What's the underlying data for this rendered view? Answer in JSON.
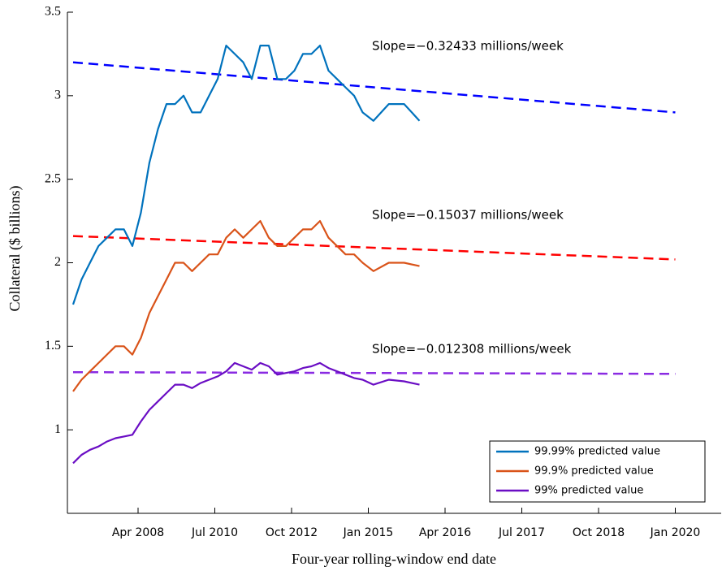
{
  "chart_data": {
    "type": "line",
    "ylabel": "Collateral ($ billions)",
    "xlabel": "Four-year rolling-window end date",
    "ylim": [
      0.5,
      3.5
    ],
    "yticks": [
      1,
      1.5,
      2,
      2.5,
      3,
      3.5
    ],
    "xlim": [
      "2006-03",
      "2020-10"
    ],
    "xticks": [
      {
        "value": "2008-04",
        "label": "Apr 2008"
      },
      {
        "value": "2010-07",
        "label": "Jul 2010"
      },
      {
        "value": "2012-10",
        "label": "Oct 2012"
      },
      {
        "value": "2015-01",
        "label": "Jan 2015"
      },
      {
        "value": "2016-04",
        "label": "Apr 2016"
      },
      {
        "value": "2017-07",
        "label": "Jul 2017"
      },
      {
        "value": "2018-10",
        "label": "Oct 2018"
      },
      {
        "value": "2020-01",
        "label": "Jan 2020"
      }
    ],
    "legend": "lower right",
    "x": [
      "2006-05",
      "2006-08",
      "2006-11",
      "2007-02",
      "2007-05",
      "2007-08",
      "2007-11",
      "2008-02",
      "2008-05",
      "2008-08",
      "2008-11",
      "2009-02",
      "2009-05",
      "2009-08",
      "2009-11",
      "2010-02",
      "2010-05",
      "2010-08",
      "2010-11",
      "2011-02",
      "2011-05",
      "2011-08",
      "2011-11",
      "2012-02",
      "2012-05",
      "2012-08",
      "2012-11",
      "2013-02",
      "2013-05",
      "2013-08",
      "2013-11",
      "2014-02",
      "2014-05",
      "2014-08",
      "2014-11",
      "2015-02",
      "2015-05",
      "2015-08",
      "2015-11"
    ],
    "series": [
      {
        "name": "99.99% predicted value",
        "color": "#0072bd",
        "values": [
          1.75,
          1.9,
          2.0,
          2.1,
          2.15,
          2.2,
          2.2,
          2.1,
          2.3,
          2.6,
          2.8,
          2.95,
          2.95,
          3.0,
          2.9,
          2.9,
          3.0,
          3.1,
          3.3,
          3.25,
          3.2,
          3.1,
          3.3,
          3.3,
          3.1,
          3.1,
          3.15,
          3.25,
          3.25,
          3.3,
          3.15,
          3.1,
          3.05,
          3.0,
          2.9,
          2.85,
          2.95,
          2.95,
          2.85
        ]
      },
      {
        "name": "99.9% predicted value",
        "color": "#d95319",
        "values": [
          1.23,
          1.3,
          1.35,
          1.4,
          1.45,
          1.5,
          1.5,
          1.45,
          1.55,
          1.7,
          1.8,
          1.9,
          2.0,
          2.0,
          1.95,
          2.0,
          2.05,
          2.05,
          2.15,
          2.2,
          2.15,
          2.2,
          2.25,
          2.15,
          2.1,
          2.1,
          2.15,
          2.2,
          2.2,
          2.25,
          2.15,
          2.1,
          2.05,
          2.05,
          2.0,
          1.95,
          2.0,
          2.0,
          1.98
        ]
      },
      {
        "name": "99% predicted value",
        "color": "#6a0dc4",
        "values": [
          0.8,
          0.85,
          0.88,
          0.9,
          0.93,
          0.95,
          0.96,
          0.97,
          1.05,
          1.12,
          1.17,
          1.22,
          1.27,
          1.27,
          1.25,
          1.28,
          1.3,
          1.32,
          1.35,
          1.4,
          1.38,
          1.36,
          1.4,
          1.38,
          1.33,
          1.34,
          1.35,
          1.37,
          1.38,
          1.4,
          1.37,
          1.35,
          1.33,
          1.31,
          1.3,
          1.27,
          1.3,
          1.29,
          1.27
        ]
      }
    ],
    "trends": [
      {
        "color": "#0000ff",
        "x": [
          "2006-05",
          "2020-01"
        ],
        "values": [
          3.2,
          2.9
        ]
      },
      {
        "color": "#ff0000",
        "x": [
          "2006-05",
          "2020-01"
        ],
        "values": [
          2.16,
          2.02
        ]
      },
      {
        "color": "#8a2be2",
        "x": [
          "2006-05",
          "2020-01"
        ],
        "values": [
          1.345,
          1.335
        ]
      }
    ],
    "annotations": [
      "Slope=−0.32433 millions/week",
      "Slope=−0.15037 millions/week",
      "Slope=−0.012308 millions/week"
    ]
  }
}
